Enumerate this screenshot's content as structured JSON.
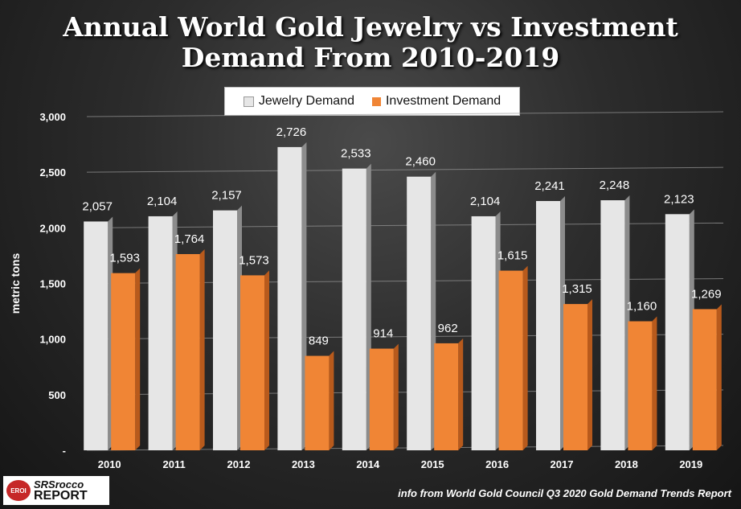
{
  "chart_data": {
    "type": "bar",
    "title_line1": "Annual World Gold Jewelry vs Investment",
    "title_line2": "Demand From 2010-2019",
    "ylabel": "metric tons",
    "xlabel": "",
    "ylim": [
      0,
      3000
    ],
    "yticks": [
      "-",
      "500",
      "1,000",
      "1,500",
      "2,000",
      "2,500",
      "3,000"
    ],
    "ytick_values": [
      0,
      500,
      1000,
      1500,
      2000,
      2500,
      3000
    ],
    "categories": [
      "2010",
      "2011",
      "2012",
      "2013",
      "2014",
      "2015",
      "2016",
      "2017",
      "2018",
      "2019"
    ],
    "series": [
      {
        "name": "Jewelry Demand",
        "color": "#e6e6e6",
        "values": [
          2057,
          2104,
          2157,
          2726,
          2533,
          2460,
          2104,
          2241,
          2248,
          2123
        ],
        "labels": [
          "2,057",
          "2,104",
          "2,157",
          "2,726",
          "2,533",
          "2,460",
          "2,104",
          "2,241",
          "2,248",
          "2,123"
        ]
      },
      {
        "name": "Investment Demand",
        "color": "#f08535",
        "values": [
          1593,
          1764,
          1573,
          849,
          914,
          962,
          1615,
          1315,
          1160,
          1269
        ],
        "labels": [
          "1,593",
          "1,764",
          "1,573",
          "849",
          "914",
          "962",
          "1,615",
          "1,315",
          "1,160",
          "1,269"
        ]
      }
    ],
    "grid": true,
    "legend_position": "top-center"
  },
  "source_note": "info from World Gold Council Q3 2020 Gold Demand Trends Report",
  "logo": {
    "badge": "EROI",
    "line1": "SRSrocco",
    "line2": "REPORT"
  }
}
